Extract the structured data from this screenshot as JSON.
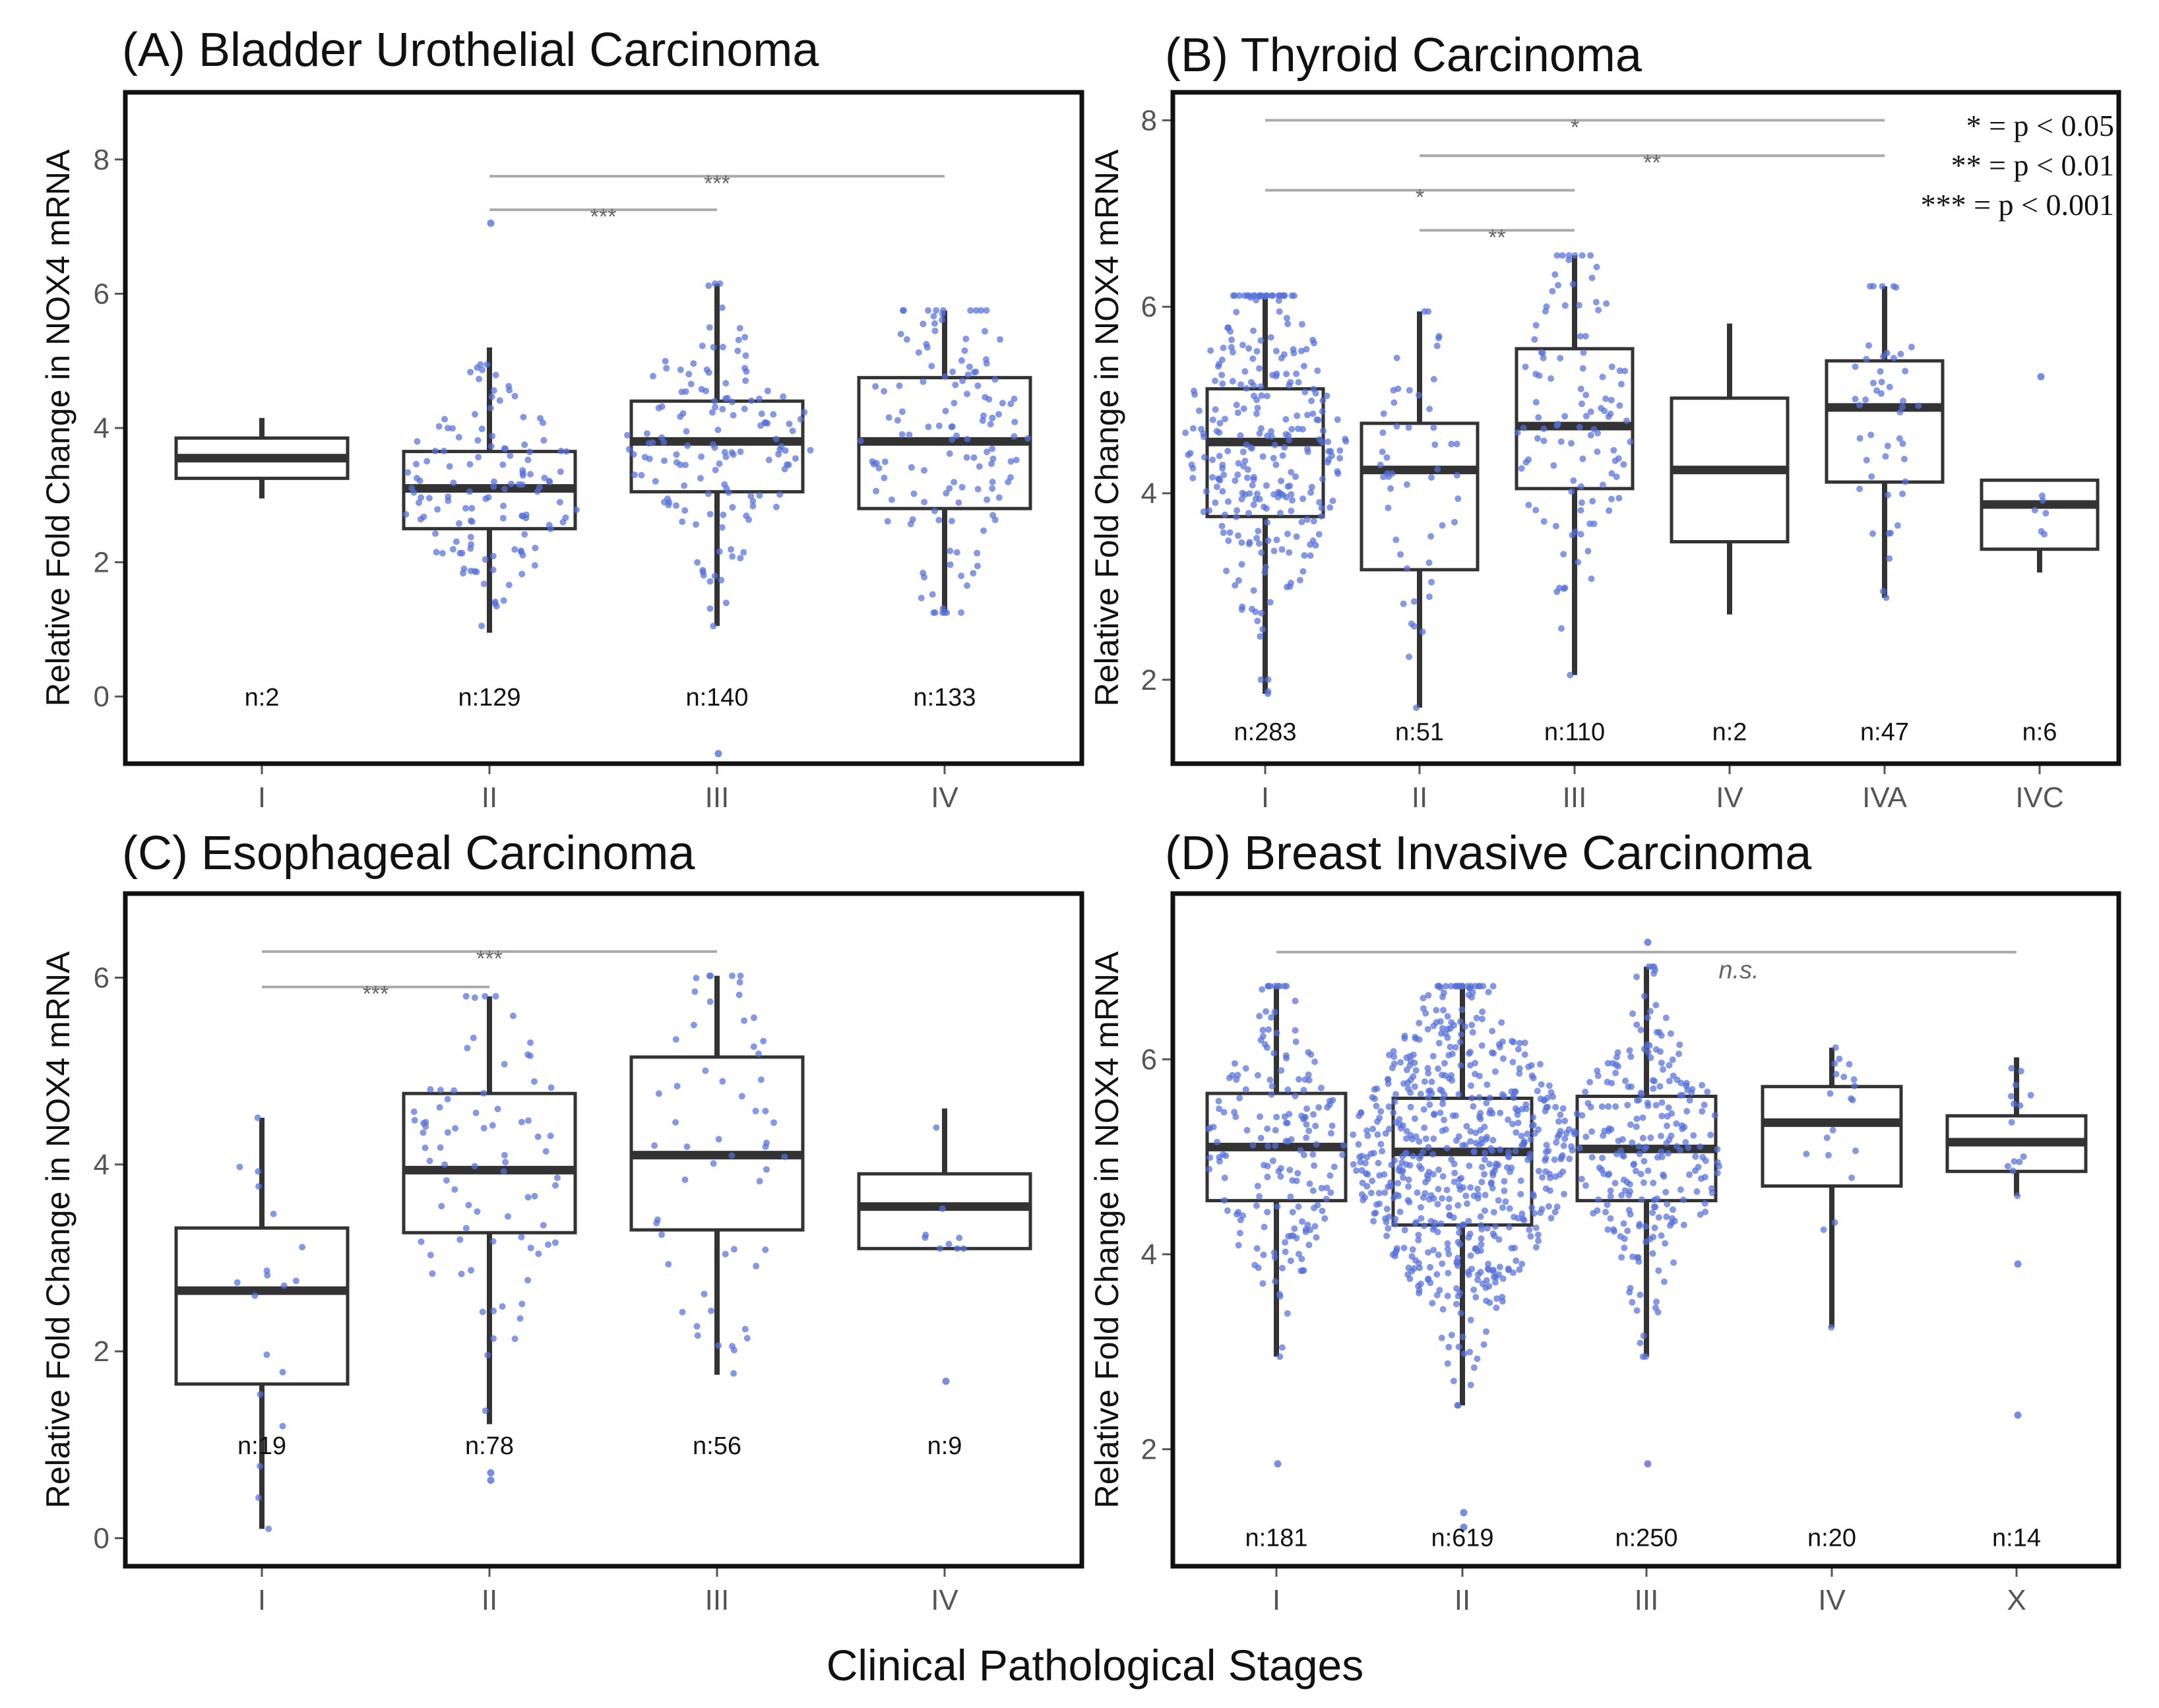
{
  "figure": {
    "xlabel": "Clinical Pathological Stages",
    "legend": [
      "* = p < 0.05",
      "** = p < 0.01",
      "*** = p < 0.001"
    ]
  },
  "chart_data": [
    {
      "id": "A",
      "type": "box",
      "title": "(A) Bladder Urothelial Carcinoma",
      "ylabel": "Relative Fold Change in NOX4 mRNA",
      "ylim": [
        -1,
        9
      ],
      "yticks": [
        0,
        2,
        4,
        6,
        8
      ],
      "categories": [
        "I",
        "II",
        "III",
        "IV"
      ],
      "boxes": [
        {
          "q1": 3.25,
          "median": 3.55,
          "q3": 3.85,
          "wlo": 2.95,
          "whi": 4.15,
          "n": 2,
          "spread": 0
        },
        {
          "q1": 2.5,
          "median": 3.1,
          "q3": 3.65,
          "wlo": 0.95,
          "whi": 5.2,
          "n": 129,
          "spread": 1.1
        },
        {
          "q1": 3.05,
          "median": 3.8,
          "q3": 4.4,
          "wlo": 1.05,
          "whi": 6.15,
          "n": 140,
          "spread": 1.1
        },
        {
          "q1": 2.8,
          "median": 3.8,
          "q3": 4.75,
          "wlo": 1.25,
          "whi": 5.75,
          "n": 133,
          "spread": 1.0
        }
      ],
      "n_labels": [
        "n:2",
        "n:129",
        "n:140",
        "n:133"
      ],
      "n_label_y": 0,
      "outliers": [
        {
          "cat": 1,
          "y": 7.05
        },
        {
          "cat": 2,
          "y": -0.85
        }
      ],
      "significance": [
        {
          "from": 1,
          "to": 3,
          "y": 7.75,
          "label": "***"
        },
        {
          "from": 1,
          "to": 2,
          "y": 7.25,
          "label": "***"
        }
      ]
    },
    {
      "id": "B",
      "type": "box",
      "title": "(B) Thyroid Carcinoma",
      "ylabel": "Relative Fold Change in NOX4 mRNA",
      "ylim": [
        1.1,
        8.3
      ],
      "yticks": [
        2,
        4,
        6,
        8
      ],
      "categories": [
        "I",
        "II",
        "III",
        "IV",
        "IVA",
        "IVC"
      ],
      "boxes": [
        {
          "q1": 3.75,
          "median": 4.55,
          "q3": 5.12,
          "wlo": 1.85,
          "whi": 6.12,
          "n": 283,
          "spread": 1.4
        },
        {
          "q1": 3.18,
          "median": 4.25,
          "q3": 4.75,
          "wlo": 1.7,
          "whi": 5.95,
          "n": 51,
          "spread": 0.7
        },
        {
          "q1": 4.05,
          "median": 4.72,
          "q3": 5.55,
          "wlo": 2.05,
          "whi": 6.55,
          "n": 110,
          "spread": 1.0
        },
        {
          "q1": 3.48,
          "median": 4.25,
          "q3": 5.02,
          "wlo": 2.7,
          "whi": 5.82,
          "n": 2,
          "spread": 0
        },
        {
          "q1": 4.12,
          "median": 4.92,
          "q3": 5.42,
          "wlo": 2.88,
          "whi": 6.22,
          "n": 47,
          "spread": 0.6
        },
        {
          "q1": 3.4,
          "median": 3.88,
          "q3": 4.14,
          "wlo": 3.15,
          "whi": 4.14,
          "n": 6,
          "spread": 0.4
        }
      ],
      "n_labels": [
        "n:283",
        "n:51",
        "n:110",
        "n:2",
        "n:47",
        "n:6"
      ],
      "n_label_y": 1.45,
      "outliers": [
        {
          "cat": 5,
          "y": 5.25
        }
      ],
      "significance": [
        {
          "from": 0,
          "to": 4,
          "y": 8.0,
          "label": "*"
        },
        {
          "from": 1,
          "to": 4,
          "y": 7.62,
          "label": "**"
        },
        {
          "from": 0,
          "to": 2,
          "y": 7.25,
          "label": "*"
        },
        {
          "from": 1,
          "to": 2,
          "y": 6.82,
          "label": "**"
        }
      ]
    },
    {
      "id": "C",
      "type": "box",
      "title": "(C) Esophageal Carcinoma",
      "ylabel": "Relative Fold Change in NOX4 mRNA",
      "ylim": [
        -0.3,
        6.9
      ],
      "yticks": [
        0,
        2,
        4,
        6
      ],
      "categories": [
        "I",
        "II",
        "III",
        "IV"
      ],
      "boxes": [
        {
          "q1": 1.65,
          "median": 2.65,
          "q3": 3.32,
          "wlo": 0.1,
          "whi": 4.5,
          "n": 19,
          "spread": 0.5
        },
        {
          "q1": 3.27,
          "median": 3.94,
          "q3": 4.76,
          "wlo": 1.22,
          "whi": 5.8,
          "n": 78,
          "spread": 1.0
        },
        {
          "q1": 3.3,
          "median": 4.1,
          "q3": 5.15,
          "wlo": 1.75,
          "whi": 6.02,
          "n": 56,
          "spread": 0.8
        },
        {
          "q1": 3.1,
          "median": 3.55,
          "q3": 3.9,
          "wlo": 3.1,
          "whi": 4.6,
          "n": 9,
          "spread": 0.3
        }
      ],
      "n_labels": [
        "n:19",
        "n:78",
        "n:56",
        "n:9"
      ],
      "n_label_y": 1.0,
      "outliers": [
        {
          "cat": 1,
          "y": 0.62
        },
        {
          "cat": 1,
          "y": 0.7
        },
        {
          "cat": 3,
          "y": 1.68
        }
      ],
      "significance": [
        {
          "from": 0,
          "to": 2,
          "y": 6.28,
          "label": "***"
        },
        {
          "from": 0,
          "to": 1,
          "y": 5.9,
          "label": "***"
        }
      ]
    },
    {
      "id": "D",
      "type": "box",
      "title": "(D) Breast Invasive Carcinoma",
      "ylabel": "Relative Fold Change in NOX4 mRNA",
      "ylim": [
        0.8,
        7.7
      ],
      "yticks": [
        2,
        4,
        6
      ],
      "categories": [
        "I",
        "II",
        "III",
        "IV",
        "X"
      ],
      "boxes": [
        {
          "q1": 4.55,
          "median": 5.1,
          "q3": 5.65,
          "wlo": 2.95,
          "whi": 6.75,
          "n": 181,
          "spread": 1.0
        },
        {
          "q1": 4.3,
          "median": 5.05,
          "q3": 5.6,
          "wlo": 2.45,
          "whi": 6.75,
          "n": 619,
          "spread": 1.6
        },
        {
          "q1": 4.55,
          "median": 5.08,
          "q3": 5.62,
          "wlo": 2.95,
          "whi": 6.95,
          "n": 250,
          "spread": 1.1
        },
        {
          "q1": 4.7,
          "median": 5.35,
          "q3": 5.72,
          "wlo": 3.25,
          "whi": 6.12,
          "n": 20,
          "spread": 0.4
        },
        {
          "q1": 4.85,
          "median": 5.15,
          "q3": 5.42,
          "wlo": 4.6,
          "whi": 6.02,
          "n": 14,
          "spread": 0.4
        }
      ],
      "n_labels": [
        "n:181",
        "n:619",
        "n:250",
        "n:20",
        "n:14"
      ],
      "n_label_y": 1.1,
      "outliers": [
        {
          "cat": 0,
          "y": 1.85
        },
        {
          "cat": 1,
          "y": 1.2
        },
        {
          "cat": 1,
          "y": 1.35
        },
        {
          "cat": 2,
          "y": 1.85
        },
        {
          "cat": 2,
          "y": 7.2
        },
        {
          "cat": 4,
          "y": 3.9
        },
        {
          "cat": 4,
          "y": 2.35
        }
      ],
      "significance": [
        {
          "from": 0,
          "to": 4,
          "y": 7.1,
          "label": "n.s."
        }
      ]
    }
  ],
  "colors": {
    "points": "#5470d8",
    "box": "#333333",
    "sigline": "#aaaaaa",
    "frame": "#111111"
  }
}
